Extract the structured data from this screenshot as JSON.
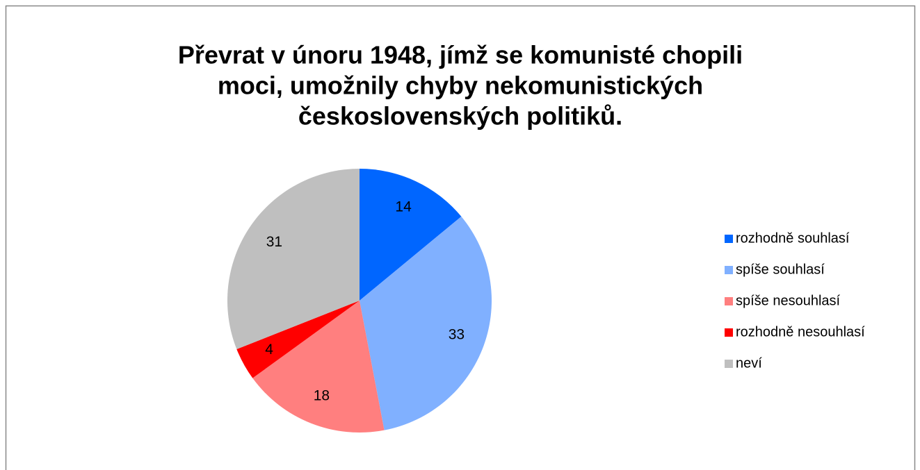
{
  "chart_data": {
    "type": "pie",
    "title": [
      "Převrat v únoru 1948, jímž se komunisté chopili",
      "moci, umožnily chyby nekomunistických",
      "československých politiků."
    ],
    "categories": [
      "rozhodně souhlasí",
      "spíše souhlasí",
      "spíše nesouhlasí",
      "rozhodně nesouhlasí",
      "neví"
    ],
    "values": [
      14,
      33,
      18,
      4,
      31
    ],
    "colors": [
      "#0066ff",
      "#80b0ff",
      "#ff7f7f",
      "#ff0000",
      "#bfbfbf"
    ],
    "legend": "right"
  }
}
